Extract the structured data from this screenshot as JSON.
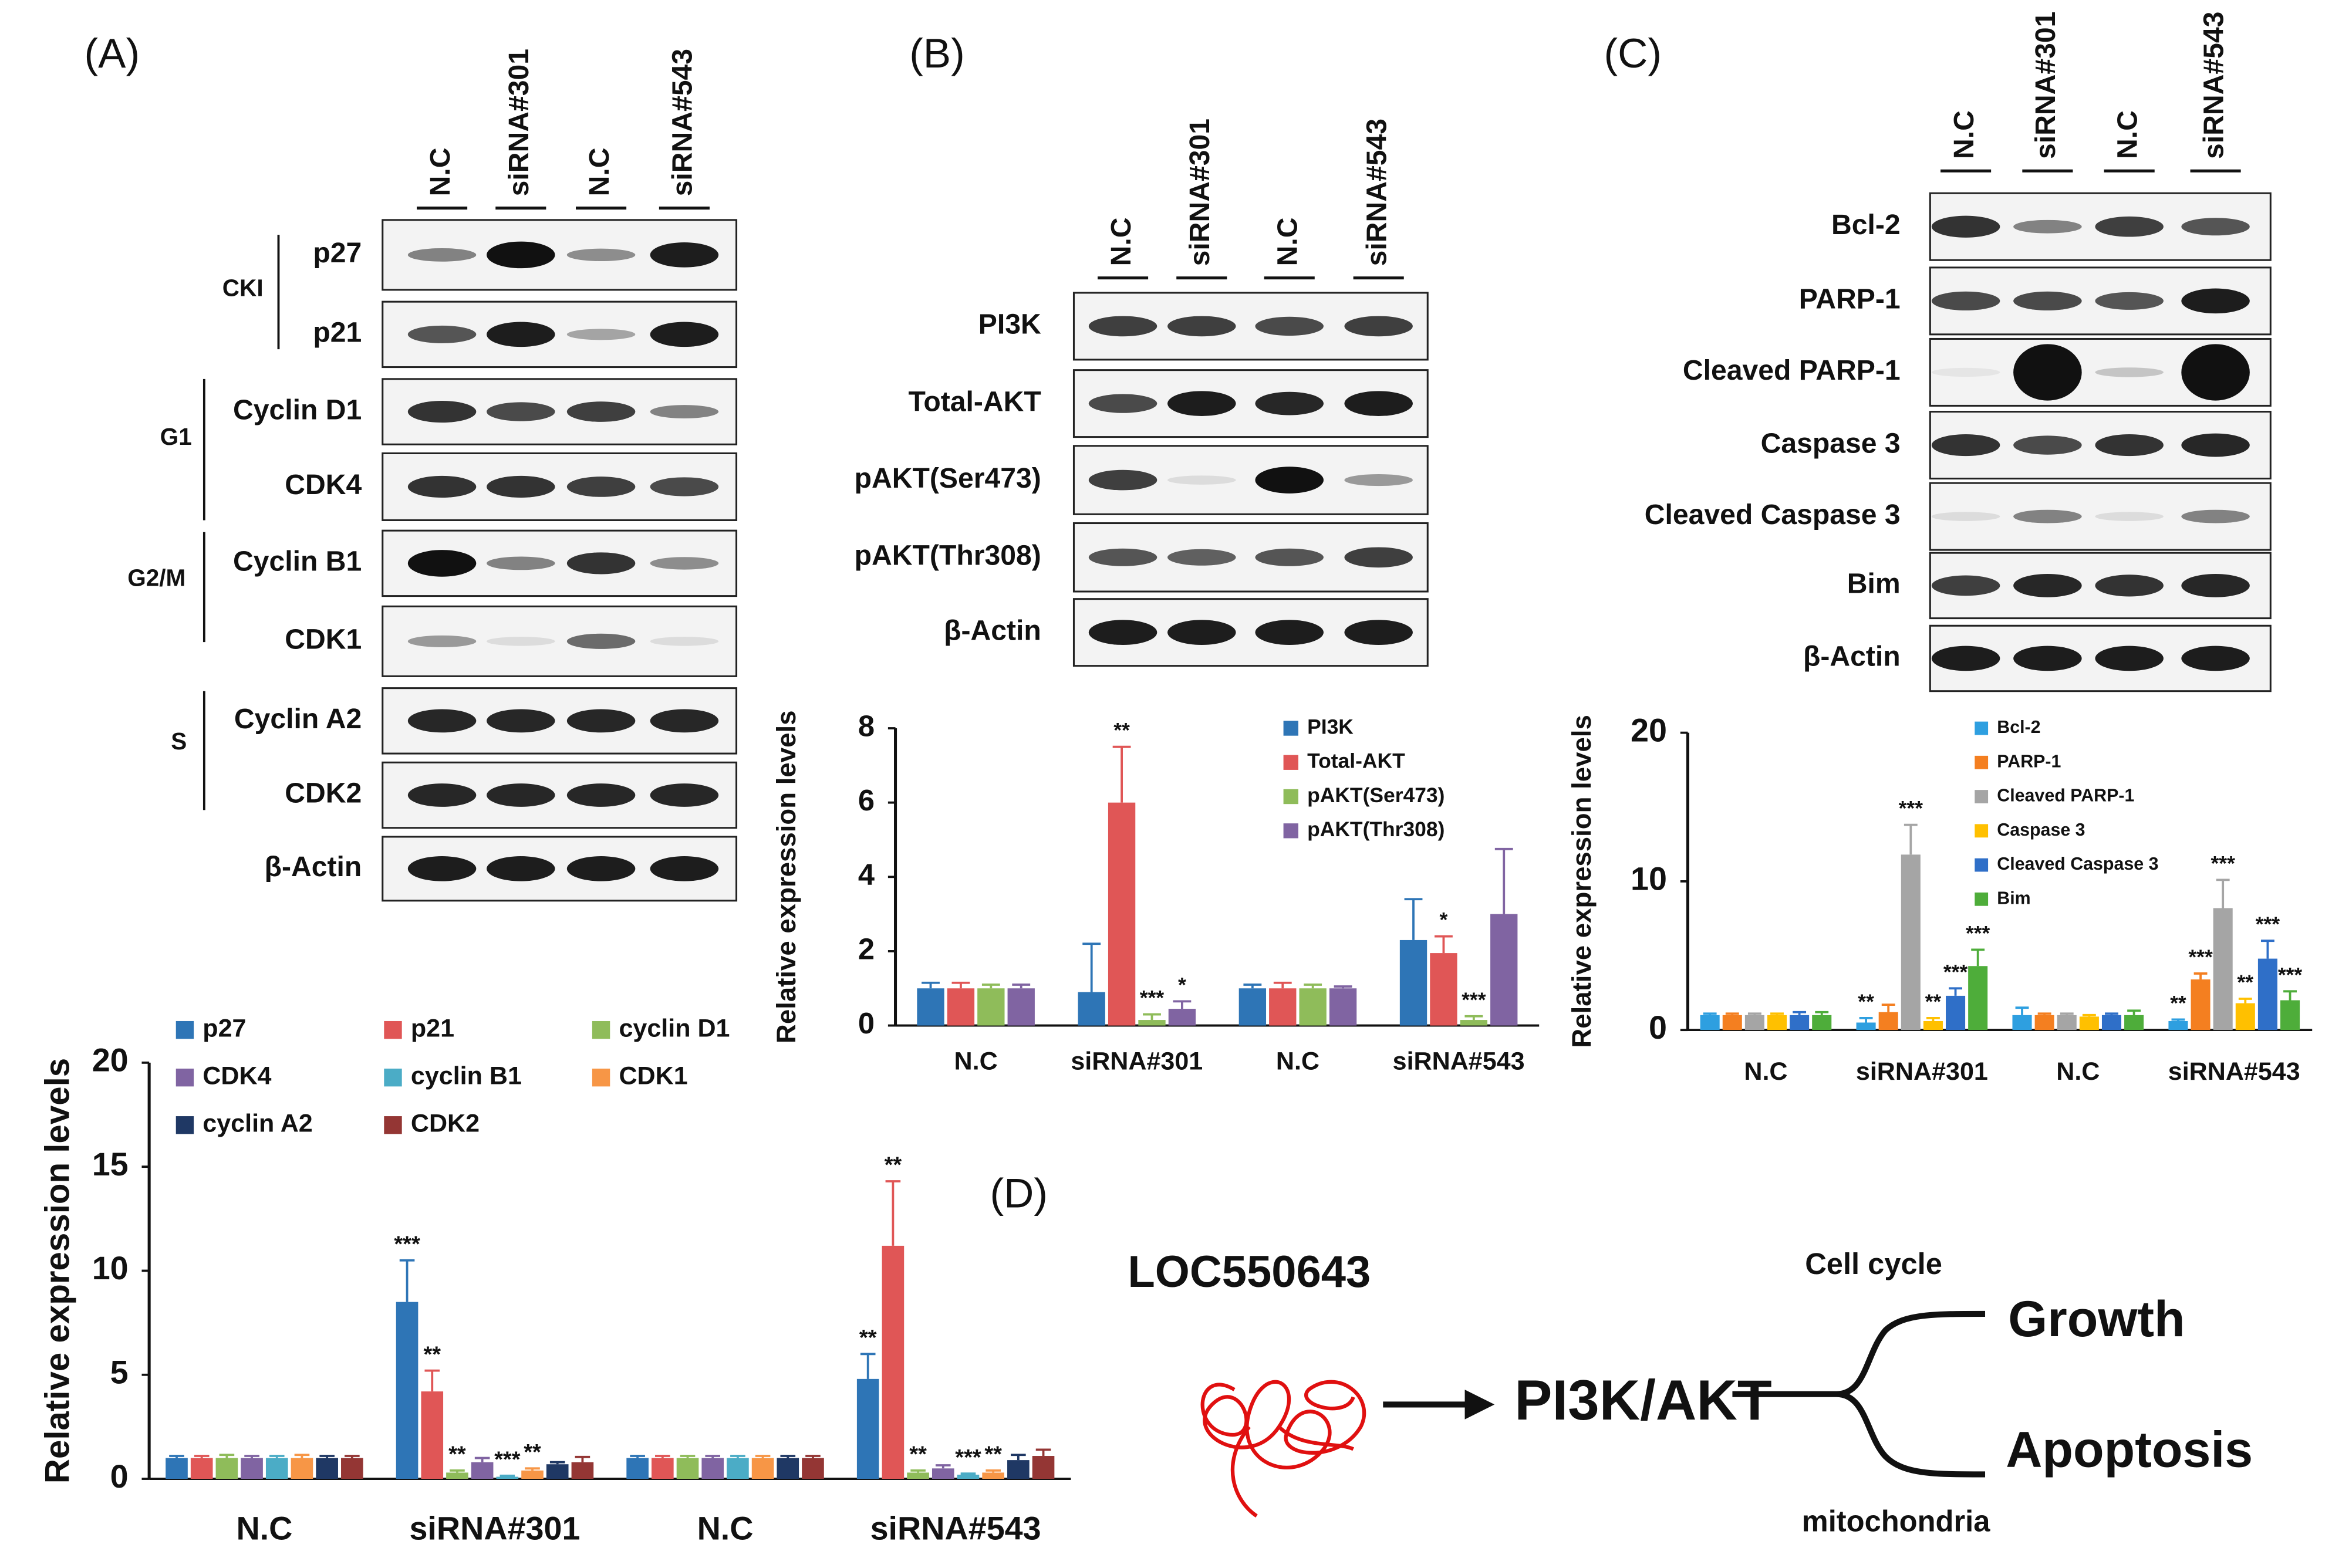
{
  "chart_data": [
    {
      "type": "bar",
      "y_label": "Relative expression levels",
      "categories": [
        "N.C",
        "siRNA#301",
        "N.C",
        "siRNA#543"
      ],
      "ylim": [
        0,
        20
      ],
      "yticks": [
        0,
        5,
        10,
        15,
        20
      ],
      "series": [
        {
          "name": "p27",
          "color": "#2e75b6",
          "values": [
            1,
            8.5,
            1,
            4.8
          ],
          "errors": [
            0.1,
            2,
            0.1,
            1.2
          ],
          "significance": [
            null,
            "***",
            null,
            "**"
          ]
        },
        {
          "name": "p21",
          "color": "#e05656",
          "values": [
            1,
            4.2,
            1,
            11.2
          ],
          "errors": [
            0.1,
            1,
            0.1,
            3.1
          ],
          "significance": [
            null,
            "**",
            null,
            "**"
          ]
        },
        {
          "name": "cyclin D1",
          "color": "#8fbc5a",
          "values": [
            1,
            0.3,
            1,
            0.3
          ],
          "errors": [
            0.15,
            0.1,
            0.1,
            0.1
          ],
          "significance": [
            null,
            "**",
            null,
            "**"
          ]
        },
        {
          "name": "CDK4",
          "color": "#8064a2",
          "values": [
            1,
            0.8,
            1,
            0.5
          ],
          "errors": [
            0.1,
            0.2,
            0.1,
            0.15
          ],
          "significance": [
            null,
            null,
            null,
            null
          ]
        },
        {
          "name": "cyclin B1",
          "color": "#4bacc6",
          "values": [
            1,
            0.1,
            1,
            0.2
          ],
          "errors": [
            0.1,
            0.05,
            0.1,
            0.05
          ],
          "significance": [
            null,
            "***",
            null,
            "***"
          ]
        },
        {
          "name": "CDK1",
          "color": "#f79646",
          "values": [
            1,
            0.4,
            1,
            0.3
          ],
          "errors": [
            0.15,
            0.1,
            0.1,
            0.1
          ],
          "significance": [
            null,
            "**",
            null,
            "**"
          ]
        },
        {
          "name": "cyclin A2",
          "color": "#1f3864",
          "values": [
            1,
            0.7,
            1,
            0.9
          ],
          "errors": [
            0.1,
            0.1,
            0.1,
            0.25
          ],
          "significance": [
            null,
            null,
            null,
            null
          ]
        },
        {
          "name": "CDK2",
          "color": "#943634",
          "values": [
            1,
            0.8,
            1,
            1.1
          ],
          "errors": [
            0.1,
            0.25,
            0.1,
            0.3
          ],
          "significance": [
            null,
            null,
            null,
            null
          ]
        }
      ]
    },
    {
      "type": "bar",
      "y_label": "Relative expression levels",
      "categories": [
        "N.C",
        "siRNA#301",
        "N.C",
        "siRNA#543"
      ],
      "ylim": [
        0,
        8
      ],
      "yticks": [
        0,
        2,
        4,
        6,
        8
      ],
      "series": [
        {
          "name": "PI3K",
          "color": "#2e75b6",
          "values": [
            1,
            0.9,
            1,
            2.3
          ],
          "errors": [
            0.15,
            1.3,
            0.1,
            1.1
          ],
          "significance": [
            null,
            null,
            null,
            null
          ]
        },
        {
          "name": "Total-AKT",
          "color": "#e05656",
          "values": [
            1,
            6,
            1,
            1.95
          ],
          "errors": [
            0.15,
            1.5,
            0.15,
            0.45
          ],
          "significance": [
            null,
            "**",
            null,
            "*"
          ]
        },
        {
          "name": "pAKT(Ser473)",
          "color": "#8fbc5a",
          "values": [
            1,
            0.15,
            1,
            0.15
          ],
          "errors": [
            0.1,
            0.15,
            0.1,
            0.1
          ],
          "significance": [
            null,
            "***",
            null,
            "***"
          ]
        },
        {
          "name": "pAKT(Thr308)",
          "color": "#8064a2",
          "values": [
            1,
            0.45,
            1,
            3
          ],
          "errors": [
            0.1,
            0.2,
            0.05,
            1.75
          ],
          "significance": [
            null,
            "*",
            null,
            null
          ]
        }
      ]
    },
    {
      "type": "bar",
      "y_label": "Relative expression levels",
      "categories": [
        "N.C",
        "siRNA#301",
        "N.C",
        "siRNA#543"
      ],
      "ylim": [
        0,
        20
      ],
      "yticks": [
        0,
        10,
        20
      ],
      "series": [
        {
          "name": "Bcl-2",
          "color": "#2e9fe0",
          "values": [
            1,
            0.5,
            1,
            0.6
          ],
          "errors": [
            0.1,
            0.3,
            0.5,
            0.1
          ],
          "significance": [
            null,
            "**",
            null,
            "**"
          ]
        },
        {
          "name": "PARP-1",
          "color": "#f47f20",
          "values": [
            1,
            1.2,
            1,
            3.4
          ],
          "errors": [
            0.1,
            0.5,
            0.1,
            0.4
          ],
          "significance": [
            null,
            null,
            null,
            "***"
          ]
        },
        {
          "name": "Cleaved PARP-1",
          "color": "#a5a5a5",
          "values": [
            1,
            11.8,
            1,
            8.2
          ],
          "errors": [
            0.1,
            2,
            0.1,
            1.9
          ],
          "significance": [
            null,
            "***",
            null,
            "***"
          ]
        },
        {
          "name": "Caspase 3",
          "color": "#ffc000",
          "values": [
            1,
            0.6,
            0.9,
            1.8
          ],
          "errors": [
            0.1,
            0.2,
            0.1,
            0.3
          ],
          "significance": [
            null,
            "**",
            null,
            "**"
          ]
        },
        {
          "name": "Cleaved Caspase 3",
          "color": "#2f6fc8",
          "values": [
            1,
            2.3,
            1,
            4.8
          ],
          "errors": [
            0.2,
            0.5,
            0.1,
            1.2
          ],
          "significance": [
            null,
            "***",
            null,
            "***"
          ]
        },
        {
          "name": "Bim",
          "color": "#4ead3a",
          "values": [
            1,
            4.3,
            1,
            2
          ],
          "errors": [
            0.2,
            1.1,
            0.3,
            0.6
          ],
          "significance": [
            null,
            "***",
            null,
            "***"
          ]
        }
      ]
    }
  ],
  "blots": [
    {
      "label": "(A)",
      "lanes": [
        "N.C",
        "siRNA#301",
        "N.C",
        "siRNA#543"
      ],
      "rows": [
        "p27",
        "p21",
        "Cyclin D1",
        "CDK4",
        "Cyclin B1",
        "CDK1",
        "Cyclin A2",
        "CDK2",
        "β-Actin"
      ],
      "groups": [
        "CKI",
        "G1",
        "G2/M",
        "S"
      ]
    },
    {
      "label": "(B)",
      "lanes": [
        "N.C",
        "siRNA#301",
        "N.C",
        "siRNA#543"
      ],
      "rows": [
        "PI3K",
        "Total-AKT",
        "pAKT(Ser473)",
        "pAKT(Thr308)",
        "β-Actin"
      ]
    },
    {
      "label": "(C)",
      "lanes": [
        "N.C",
        "siRNA#301",
        "N.C",
        "siRNA#543"
      ],
      "rows": [
        "Bcl-2",
        "PARP-1",
        "Cleaved PARP-1",
        "Caspase 3",
        "Cleaved Caspase 3",
        "Bim",
        "β-Actin"
      ]
    }
  ],
  "diagram": {
    "label": "(D)",
    "gene": "LOC550643",
    "pathway": "PI3K/AKT",
    "top": "Cell cycle",
    "growth": "Growth",
    "apoptosis": "Apoptosis",
    "bottom": "mitochondria"
  }
}
